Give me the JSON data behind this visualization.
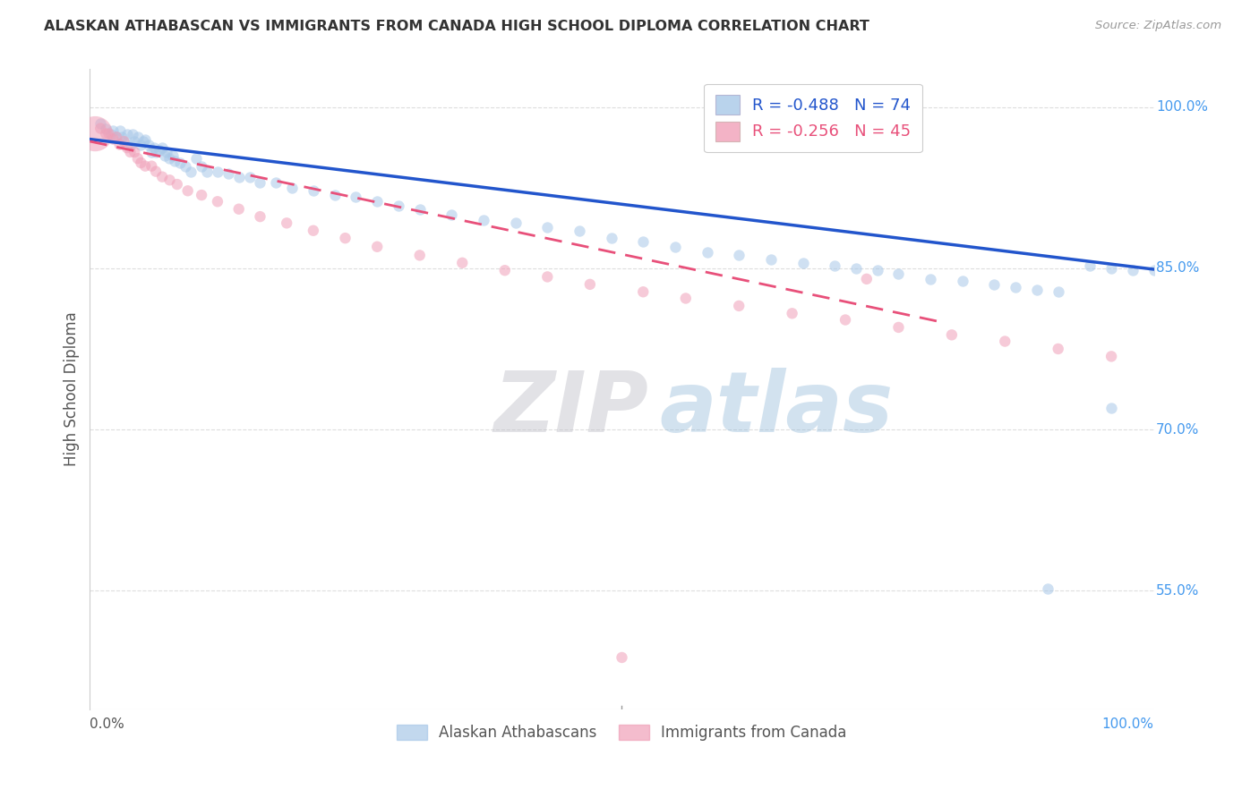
{
  "title": "ALASKAN ATHABASCAN VS IMMIGRANTS FROM CANADA HIGH SCHOOL DIPLOMA CORRELATION CHART",
  "source": "Source: ZipAtlas.com",
  "ylabel": "High School Diploma",
  "xlim": [
    0.0,
    1.0
  ],
  "ylim": [
    0.44,
    1.035
  ],
  "yticks": [
    0.55,
    0.7,
    0.85,
    1.0
  ],
  "ytick_labels": [
    "55.0%",
    "70.0%",
    "85.0%",
    "100.0%"
  ],
  "legend_blue_r": "-0.488",
  "legend_blue_n": "74",
  "legend_pink_r": "-0.256",
  "legend_pink_n": "45",
  "legend_blue_label": "Alaskan Athabascans",
  "legend_pink_label": "Immigrants from Canada",
  "blue_color": "#A8C8E8",
  "pink_color": "#F0A0B8",
  "trend_blue_color": "#2255CC",
  "trend_pink_color": "#E8507A",
  "blue_scatter_x": [
    0.01,
    0.015,
    0.02,
    0.022,
    0.025,
    0.028,
    0.03,
    0.032,
    0.035,
    0.038,
    0.04,
    0.042,
    0.045,
    0.048,
    0.05,
    0.052,
    0.055,
    0.058,
    0.06,
    0.062,
    0.065,
    0.068,
    0.07,
    0.072,
    0.075,
    0.078,
    0.08,
    0.085,
    0.09,
    0.095,
    0.1,
    0.105,
    0.11,
    0.12,
    0.13,
    0.14,
    0.15,
    0.16,
    0.175,
    0.19,
    0.21,
    0.23,
    0.25,
    0.27,
    0.29,
    0.31,
    0.34,
    0.37,
    0.4,
    0.43,
    0.46,
    0.49,
    0.52,
    0.55,
    0.58,
    0.61,
    0.64,
    0.67,
    0.7,
    0.72,
    0.74,
    0.76,
    0.79,
    0.82,
    0.85,
    0.87,
    0.89,
    0.91,
    0.94,
    0.96,
    0.98,
    1.0,
    0.96,
    0.9
  ],
  "blue_scatter_y": [
    0.985,
    0.98,
    0.975,
    0.978,
    0.972,
    0.978,
    0.972,
    0.968,
    0.975,
    0.965,
    0.975,
    0.968,
    0.972,
    0.965,
    0.968,
    0.97,
    0.965,
    0.958,
    0.962,
    0.958,
    0.96,
    0.962,
    0.955,
    0.958,
    0.952,
    0.955,
    0.95,
    0.948,
    0.945,
    0.94,
    0.952,
    0.945,
    0.94,
    0.94,
    0.938,
    0.935,
    0.935,
    0.93,
    0.93,
    0.925,
    0.922,
    0.918,
    0.916,
    0.912,
    0.908,
    0.905,
    0.9,
    0.895,
    0.892,
    0.888,
    0.885,
    0.878,
    0.875,
    0.87,
    0.865,
    0.862,
    0.858,
    0.855,
    0.852,
    0.85,
    0.848,
    0.845,
    0.84,
    0.838,
    0.835,
    0.832,
    0.83,
    0.828,
    0.852,
    0.85,
    0.848,
    0.848,
    0.72,
    0.552
  ],
  "blue_scatter_size": 80,
  "pink_scatter_x": [
    0.005,
    0.01,
    0.015,
    0.018,
    0.022,
    0.025,
    0.028,
    0.032,
    0.035,
    0.038,
    0.042,
    0.045,
    0.048,
    0.052,
    0.058,
    0.062,
    0.068,
    0.075,
    0.082,
    0.092,
    0.105,
    0.12,
    0.14,
    0.16,
    0.185,
    0.21,
    0.24,
    0.27,
    0.31,
    0.35,
    0.39,
    0.43,
    0.47,
    0.52,
    0.56,
    0.61,
    0.66,
    0.71,
    0.76,
    0.81,
    0.86,
    0.91,
    0.96,
    0.73,
    0.5
  ],
  "pink_scatter_y": [
    0.975,
    0.98,
    0.975,
    0.975,
    0.97,
    0.972,
    0.965,
    0.968,
    0.962,
    0.958,
    0.958,
    0.952,
    0.948,
    0.945,
    0.945,
    0.94,
    0.935,
    0.932,
    0.928,
    0.922,
    0.918,
    0.912,
    0.905,
    0.898,
    0.892,
    0.885,
    0.878,
    0.87,
    0.862,
    0.855,
    0.848,
    0.842,
    0.835,
    0.828,
    0.822,
    0.815,
    0.808,
    0.802,
    0.795,
    0.788,
    0.782,
    0.775,
    0.768,
    0.84,
    0.488
  ],
  "pink_large_size": 800,
  "pink_small_size": 80,
  "watermark_zip": "ZIP",
  "watermark_atlas": "atlas",
  "background_color": "#FFFFFF",
  "grid_color": "#DDDDDD"
}
